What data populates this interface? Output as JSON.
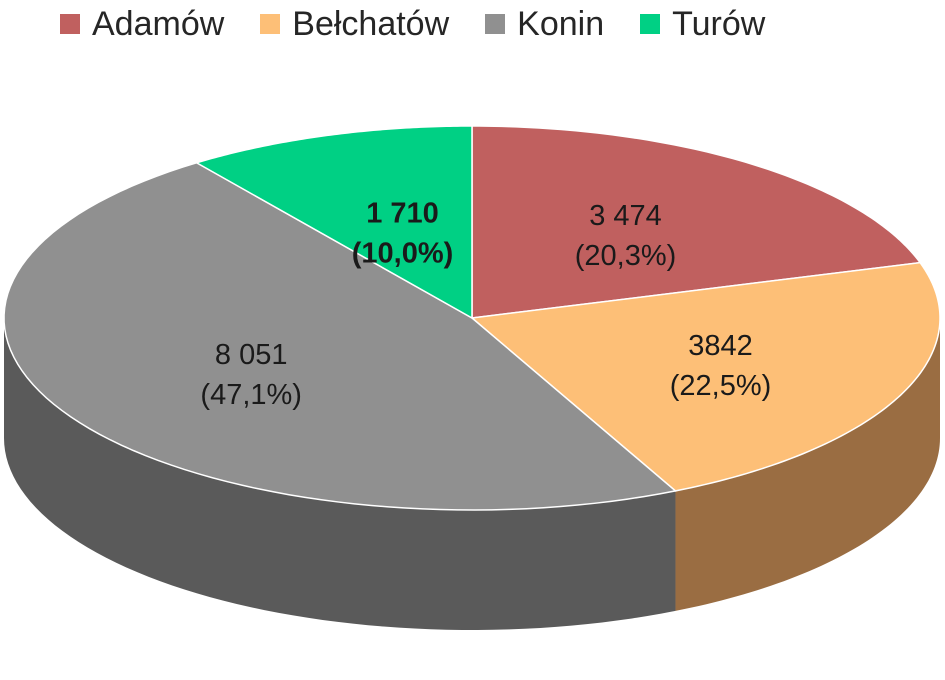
{
  "chart_data": {
    "type": "pie",
    "three_d": true,
    "legend_position": "top",
    "series": [
      {
        "name": "Adamów",
        "value": 3474,
        "value_label": "3 474",
        "percent_label": "(20,3%)",
        "color": "#c0605f",
        "side_color": "#8a3d3c",
        "bold_label": false
      },
      {
        "name": "Bełchatów",
        "value": 3842,
        "value_label": "3842",
        "percent_label": "(22,5%)",
        "color": "#fdbf77",
        "side_color": "#9a6d42",
        "bold_label": false
      },
      {
        "name": "Konin",
        "value": 8051,
        "value_label": "8 051",
        "percent_label": "(47,1%)",
        "color": "#909090",
        "side_color": "#5a5a5a",
        "bold_label": false
      },
      {
        "name": "Turów",
        "value": 1710,
        "value_label": "1 710",
        "percent_label": "(10,0%)",
        "color": "#00d084",
        "side_color": "#00804f",
        "bold_label": true
      }
    ]
  }
}
